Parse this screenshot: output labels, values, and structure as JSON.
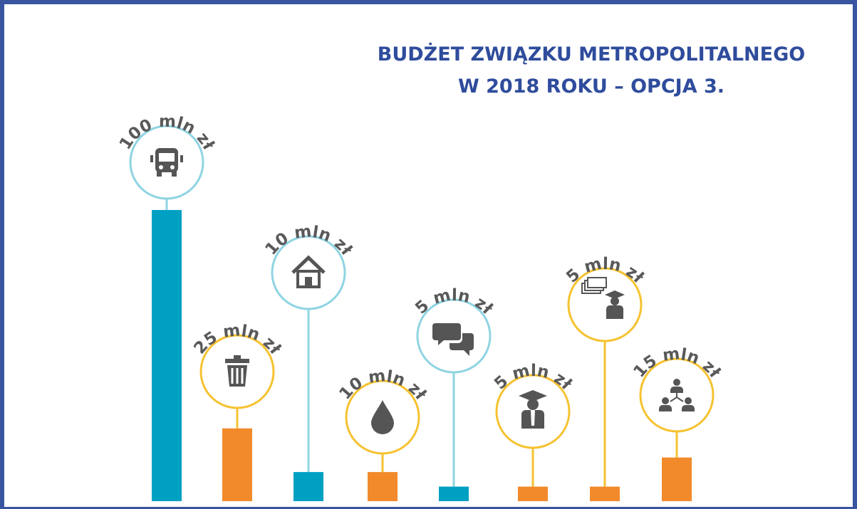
{
  "chart_data": {
    "type": "bar",
    "title": [
      "BUDŻET ZWIĄZKU METROPOLITALNEGO",
      "W 2018 ROKU – OPCJA 3."
    ],
    "values": [
      100,
      25,
      10,
      10,
      5,
      5,
      5,
      15
    ],
    "value_labels": [
      "100 mln zł",
      "25 mln zł",
      "10 mln zł",
      "10 mln zł",
      "5 mln zł",
      "5 mln zł",
      "5 mln zł",
      "15 mln zł"
    ],
    "colors": [
      "#00a0c3",
      "#f28a2b",
      "#00a0c3",
      "#f28a2b",
      "#00a0c3",
      "#f28a2b",
      "#f28a2b",
      "#f28a2b"
    ],
    "ylim": [
      0,
      100
    ]
  }
}
